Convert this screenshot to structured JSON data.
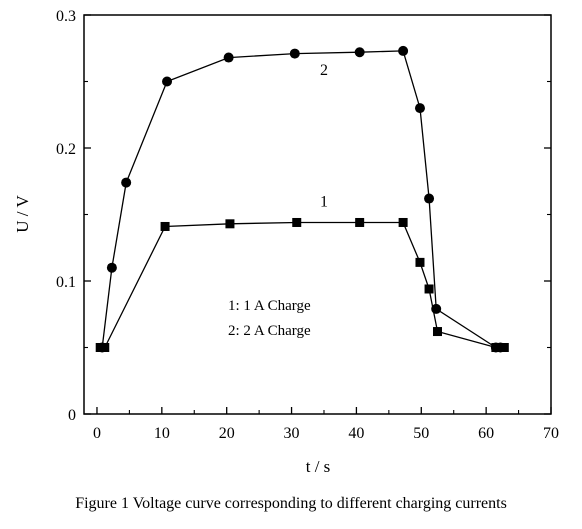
{
  "chart_data": {
    "type": "line",
    "title": "",
    "xlabel": "t / s",
    "ylabel": "U / V",
    "xlim": [
      -2,
      70
    ],
    "ylim": [
      0,
      0.3
    ],
    "xticks": [
      0,
      10,
      20,
      30,
      40,
      50,
      60,
      70
    ],
    "xtick_labels": [
      "0",
      "10",
      "20",
      "30",
      "40",
      "50",
      "60",
      "70"
    ],
    "yticks": [
      0,
      0.1,
      0.2,
      0.3
    ],
    "ytick_labels": [
      "0",
      "0.1",
      "0.2",
      "0.3"
    ],
    "grid": false,
    "series": [
      {
        "name": "1",
        "marker": "square",
        "x": [
          0.5,
          1.2,
          10.5,
          20.5,
          30.8,
          40.5,
          47.2,
          49.8,
          51.2,
          52.5,
          61.5,
          62.8
        ],
        "y": [
          0.05,
          0.05,
          0.141,
          0.143,
          0.144,
          0.144,
          0.144,
          0.114,
          0.094,
          0.062,
          0.05,
          0.05
        ]
      },
      {
        "name": "2",
        "marker": "circle",
        "x": [
          0.8,
          2.3,
          4.5,
          10.8,
          20.3,
          30.5,
          40.5,
          47.2,
          49.8,
          51.2,
          52.3,
          61.5,
          62.2
        ],
        "y": [
          0.05,
          0.11,
          0.174,
          0.25,
          0.268,
          0.271,
          0.272,
          0.273,
          0.23,
          0.162,
          0.079,
          0.05,
          0.05
        ]
      }
    ],
    "series_labels": [
      {
        "text": "1",
        "x": 35,
        "y": 0.156
      },
      {
        "text": "2",
        "x": 35,
        "y": 0.255
      }
    ],
    "legend": {
      "placement": "center",
      "entries": [
        "1: 1 A Charge",
        "2: 2 A Charge"
      ]
    }
  },
  "caption": "Figure 1 Voltage curve corresponding to different charging currents"
}
